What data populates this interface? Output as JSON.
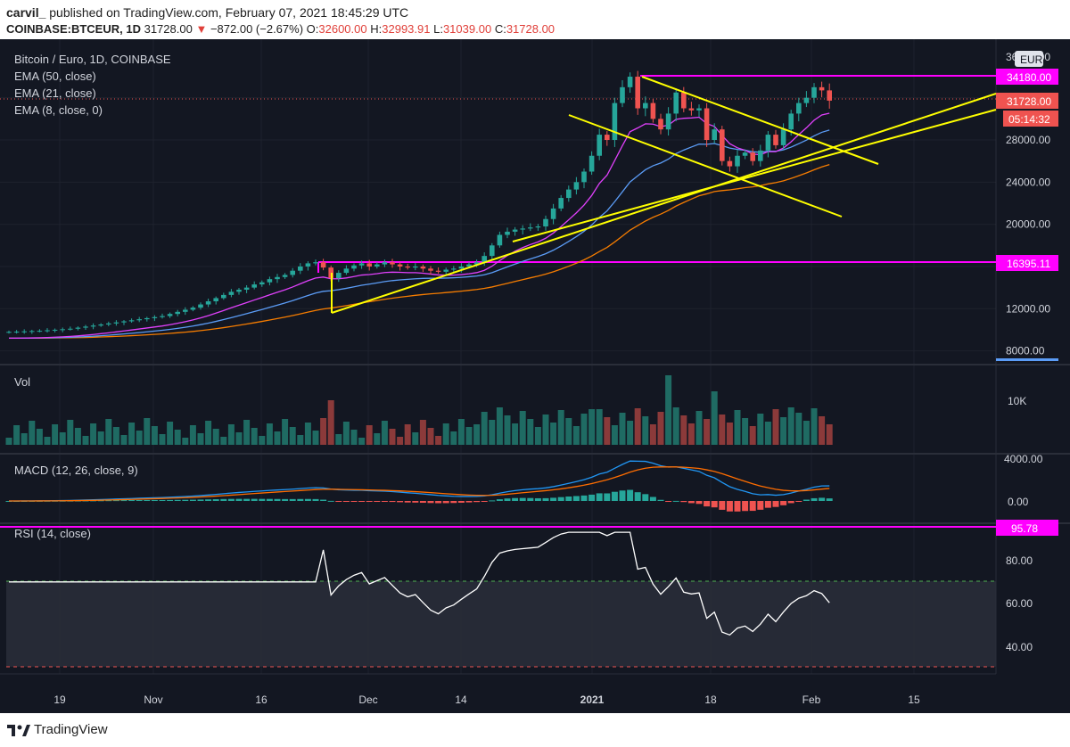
{
  "header": {
    "author": "carvil_",
    "published_text": "published on TradingView.com, February 07, 2021 18:45:29 UTC",
    "symbol": "COINBASE:BTCEUR, 1D",
    "last": "31728.00",
    "arrow": "▼",
    "change": "−872.00 (−2.67%)",
    "o_label": "O:",
    "o_value": "32600.00",
    "h_label": "H:",
    "h_value": "32993.91",
    "l_label": "L:",
    "l_value": "31039.00",
    "c_label": "C:",
    "c_value": "31728.00"
  },
  "legend": {
    "title": "Bitcoin / Euro, 1D, COINBASE",
    "ema50": "EMA (50, close)",
    "ema21": "EMA (21, close)",
    "ema8": "EMA (8, close, 0)",
    "vol": "Vol",
    "macd": "MACD (12, 26, close, 9)",
    "rsi": "RSI (14, close)"
  },
  "axis": {
    "currency": "EUR",
    "price_ticks": [
      "28000.00",
      "24000.00",
      "20000.00",
      "12000.00",
      "8000.00"
    ],
    "price_ticks_values": [
      28000,
      24000,
      20000,
      12000,
      8000
    ],
    "price_top_partial": "36000.00",
    "vol_tick": "10K",
    "macd_ticks": [
      "4000.00",
      "0.00"
    ],
    "rsi_ticks": [
      "80.00",
      "60.00",
      "40.00"
    ],
    "x_ticks": [
      "19",
      "Nov",
      "16",
      "Dec",
      "14",
      "2021",
      "18",
      "Feb",
      "15"
    ]
  },
  "price_labels": {
    "level_high": "34180.00",
    "last": "31728.00",
    "countdown": "05:14:32",
    "level_low": "16395.11",
    "rsi_level": "95.78"
  },
  "colors": {
    "background": "#131722",
    "up": "#26a69a",
    "down": "#ef5350",
    "magenta": "#ff00ff",
    "yellow": "#ffff00",
    "ema8": "#e040fb",
    "ema21": "#5b9cf6",
    "ema50": "#f57c00",
    "macd": "#2196f3",
    "signal": "#ff6d00",
    "text": "#d1d4dc"
  },
  "footer": {
    "brand": "TradingView"
  },
  "chart_data": {
    "type": "candlestick",
    "symbol": "BTCEUR",
    "interval": "1D",
    "x_range": [
      "2020-10-13",
      "2021-02-07"
    ],
    "y_range": [
      8000,
      36000
    ],
    "x_tick_labels": [
      "19",
      "Nov",
      "16",
      "Dec",
      "14",
      "2021",
      "18",
      "Feb",
      "15"
    ],
    "horizontal_levels": [
      34180.0,
      16395.11
    ],
    "close_series": [
      9800,
      9820,
      9850,
      9880,
      9900,
      9950,
      10000,
      10050,
      10100,
      10200,
      10300,
      10400,
      10500,
      10600,
      10700,
      10800,
      10900,
      11000,
      11100,
      11200,
      11300,
      11500,
      11700,
      11900,
      12100,
      12400,
      12700,
      13000,
      13300,
      13600,
      13800,
      14000,
      14300,
      14500,
      14800,
      15000,
      15200,
      15600,
      16000,
      16300,
      16400,
      15900,
      14900,
      15400,
      15800,
      16100,
      16300,
      16000,
      16200,
      16400,
      16200,
      16000,
      15900,
      16000,
      15800,
      15600,
      15500,
      15700,
      15800,
      16000,
      16200,
      16400,
      17000,
      18000,
      19000,
      19300,
      19500,
      19600,
      19700,
      19800,
      20500,
      21500,
      22500,
      23300,
      24000,
      25000,
      26500,
      28500,
      28000,
      31500,
      33000,
      34000,
      31000,
      31500,
      30000,
      29000,
      30500,
      32500,
      31000,
      30800,
      31000,
      28000,
      29000,
      26000,
      25500,
      26500,
      26800,
      26000,
      27000,
      28500,
      27500,
      29000,
      30500,
      31500,
      32000,
      33000,
      32700,
      31728
    ],
    "ema50_end": 26500,
    "ema21_end": 29200,
    "ema8_end": 30800,
    "rsi_level_line": 95.78,
    "rsi_band": [
      30,
      70
    ]
  }
}
